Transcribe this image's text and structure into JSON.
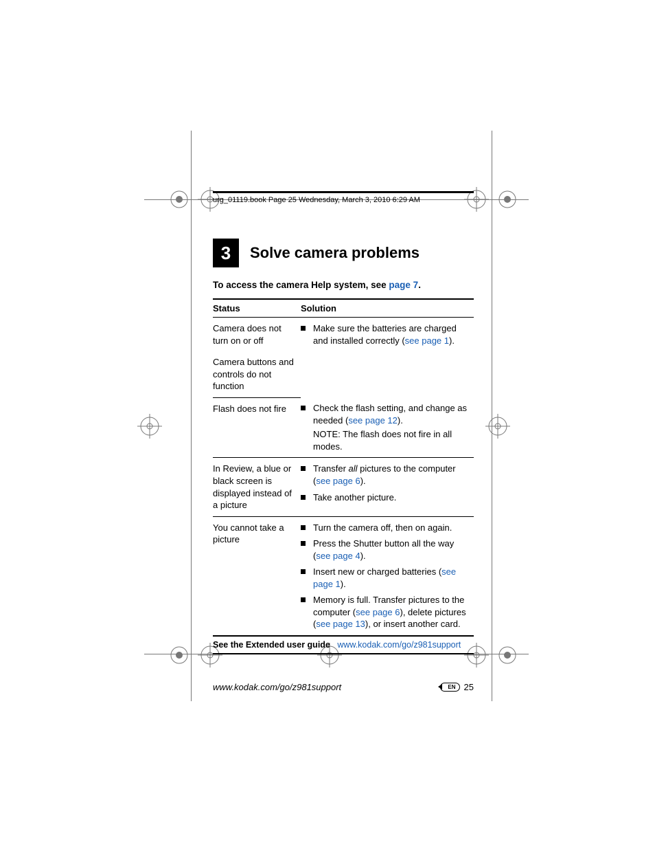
{
  "colors": {
    "link": "#1a5fb4",
    "text": "#000000",
    "bg": "#ffffff",
    "mark": "#777777"
  },
  "running_head": "urg_01119.book  Page 25  Wednesday, March 3, 2010  6:29 AM",
  "chapter": {
    "number": "3",
    "title": "Solve camera problems"
  },
  "intro": {
    "prefix": "To access the camera Help system, see ",
    "link": "page 7",
    "suffix": "."
  },
  "table": {
    "headers": {
      "status": "Status",
      "solution": "Solution"
    },
    "rows": [
      {
        "status": "Camera does not turn on or off",
        "solutions": [
          {
            "parts": [
              {
                "t": "Make sure the batteries are charged and installed correctly ("
              },
              {
                "t": "see page 1",
                "link": true
              },
              {
                "t": ")."
              }
            ]
          }
        ],
        "span_next": true
      },
      {
        "status": "Camera buttons and controls do not function",
        "solutions": null
      },
      {
        "status": "Flash does not fire",
        "solutions": [
          {
            "parts": [
              {
                "t": "Check the flash setting, and change as needed ("
              },
              {
                "t": "see page 12",
                "link": true
              },
              {
                "t": ")."
              }
            ]
          }
        ],
        "note": "NOTE:  The flash does not fire in all modes."
      },
      {
        "status": "In Review, a blue or black screen is displayed instead of a picture",
        "solutions": [
          {
            "parts": [
              {
                "t": "Transfer "
              },
              {
                "t": "all",
                "em": true
              },
              {
                "t": " pictures to the computer ("
              },
              {
                "t": "see page 6",
                "link": true
              },
              {
                "t": ")."
              }
            ]
          },
          {
            "parts": [
              {
                "t": "Take another picture."
              }
            ]
          }
        ]
      },
      {
        "status": "You cannot take a picture",
        "solutions": [
          {
            "parts": [
              {
                "t": "Turn the camera off, then on again."
              }
            ]
          },
          {
            "parts": [
              {
                "t": "Press the Shutter button all the way ("
              },
              {
                "t": "see page 4",
                "link": true
              },
              {
                "t": ")."
              }
            ]
          },
          {
            "parts": [
              {
                "t": "Insert new or charged batteries ("
              },
              {
                "t": "see page 1",
                "link": true
              },
              {
                "t": ")."
              }
            ]
          },
          {
            "parts": [
              {
                "t": "Memory is full. Transfer pictures to the computer ("
              },
              {
                "t": "see page 6",
                "link": true
              },
              {
                "t": "), delete pictures ("
              },
              {
                "t": "see page 13",
                "link": true
              },
              {
                "t": "), or insert another card."
              }
            ]
          }
        ]
      }
    ]
  },
  "see_extended": {
    "label": "See the Extended user guide",
    "url": "www.kodak.com/go/z981support"
  },
  "footer": {
    "url": "www.kodak.com/go/z981support",
    "lang": "EN",
    "page": "25"
  }
}
